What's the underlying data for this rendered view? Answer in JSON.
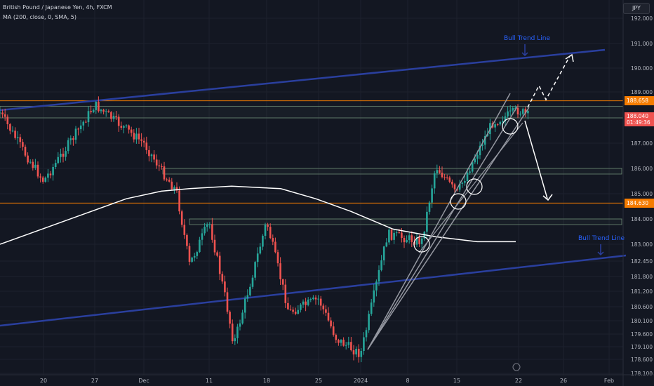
{
  "header": {
    "symbol_line": "British Pound / Japanese Yen, 4h, FXCM",
    "indicator_line": "MA (200, close, 0, SMA, 5)",
    "currency": "JPY"
  },
  "annotations": {
    "trend_top": "Bull Trend Line",
    "trend_bottom": "Bull Trend Line"
  },
  "price_tags": {
    "upper": "188.658",
    "current_price": "188.040",
    "current_countdown": "01:49:36",
    "lower": "184.630"
  },
  "colors": {
    "background": "#131722",
    "up": "#26a69a",
    "down": "#ef5350",
    "trendline": "#2a3f9e",
    "level": "#f57c00",
    "zone": "#a5d6a7",
    "ma": "#ffffff",
    "channel": "#9598a1"
  },
  "chart_data": {
    "type": "candlestick",
    "title": "British Pound / Japanese Yen, 4h, FXCM",
    "y_axis_ticks": [
      "192.000",
      "191.000",
      "190.000",
      "189.000",
      "188.000",
      "187.000",
      "186.000",
      "185.000",
      "184.000",
      "183.000",
      "182.450",
      "181.800",
      "181.200",
      "180.600",
      "180.100",
      "179.600",
      "179.100",
      "178.600",
      "178.100"
    ],
    "x_axis_ticks": [
      "20",
      "27",
      "Dec",
      "11",
      "18",
      "25",
      "2024",
      "8",
      "15",
      "22",
      "26",
      "Feb"
    ],
    "ylim": [
      178.0,
      192.3
    ],
    "series": [
      {
        "name": "MA (200, close, 0, SMA, 5)",
        "type": "line",
        "shape": "rises from 183.0 to 185.2 (early Dec), flat, then declines to about 183.1 by mid-Jan"
      }
    ],
    "horizontal_levels": [
      188.658,
      184.63
    ],
    "zones": [
      [
        188.0,
        188.45
      ],
      [
        185.85,
        186.0
      ],
      [
        183.85,
        184.0
      ]
    ],
    "trend_lines": [
      "Bull Trend Line (upper): 188.45 (Nov 13) to 190.65 (Jan 30)",
      "Bull Trend Line (lower): 180.55 (Nov 13) to 182.5 (Feb 1)"
    ],
    "price_path": [
      {
        "date": "Nov 13",
        "price": 188.2
      },
      {
        "date": "Nov 17",
        "price": 186.6
      },
      {
        "date": "Nov 20",
        "price": 185.5
      },
      {
        "date": "Nov 24",
        "price": 187.2
      },
      {
        "date": "Nov 27",
        "price": 188.5
      },
      {
        "date": "Dec 1",
        "price": 187.0
      },
      {
        "date": "Dec 4",
        "price": 185.8
      },
      {
        "date": "Dec 6",
        "price": 185.1
      },
      {
        "date": "Dec 8",
        "price": 182.3
      },
      {
        "date": "Dec 11",
        "price": 183.9
      },
      {
        "date": "Dec 13",
        "price": 180.9
      },
      {
        "date": "Dec 14",
        "price": 179.2
      },
      {
        "date": "Dec 18",
        "price": 183.9
      },
      {
        "date": "Dec 21",
        "price": 180.4
      },
      {
        "date": "Dec 25",
        "price": 180.9
      },
      {
        "date": "Dec 28",
        "price": 179.4
      },
      {
        "date": "Jan 1",
        "price": 178.8
      },
      {
        "date": "Jan 5",
        "price": 183.4
      },
      {
        "date": "Jan 10",
        "price": 183.1
      },
      {
        "date": "Jan 12",
        "price": 186.1
      },
      {
        "date": "Jan 15",
        "price": 185.0
      },
      {
        "date": "Jan 19",
        "price": 187.8
      },
      {
        "date": "Jan 22",
        "price": 188.3
      },
      {
        "date": "Jan 23",
        "price": 188.04
      }
    ]
  }
}
